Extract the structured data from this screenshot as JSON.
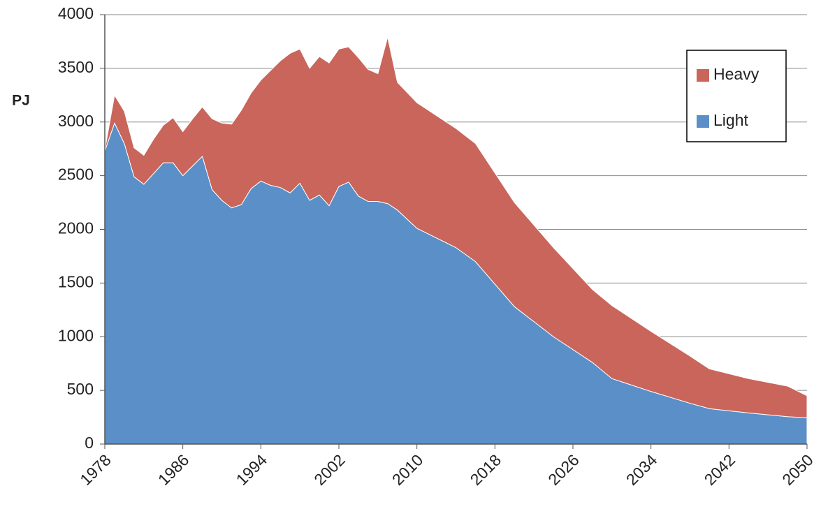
{
  "chart_data": {
    "type": "stacked-area",
    "y_label": "PJ",
    "x": [
      1978,
      1979,
      1980,
      1981,
      1982,
      1983,
      1984,
      1985,
      1986,
      1987,
      1988,
      1989,
      1990,
      1991,
      1992,
      1993,
      1994,
      1995,
      1996,
      1997,
      1998,
      1999,
      2000,
      2001,
      2002,
      2003,
      2004,
      2005,
      2006,
      2007,
      2008,
      2010,
      2014,
      2016,
      2020,
      2024,
      2028,
      2030,
      2034,
      2038,
      2040,
      2044,
      2048,
      2050
    ],
    "series": [
      {
        "name": "Light",
        "color": "#5b8fc7",
        "values": [
          2730,
          2990,
          2800,
          2490,
          2420,
          2520,
          2620,
          2620,
          2500,
          2590,
          2680,
          2370,
          2270,
          2200,
          2230,
          2380,
          2450,
          2410,
          2390,
          2340,
          2430,
          2270,
          2320,
          2220,
          2400,
          2440,
          2310,
          2260,
          2260,
          2240,
          2180,
          2010,
          1830,
          1700,
          1280,
          1000,
          760,
          610,
          490,
          380,
          330,
          290,
          255,
          245
        ]
      },
      {
        "name": "Heavy",
        "color": "#c9655b",
        "values": [
          10,
          260,
          300,
          270,
          270,
          320,
          350,
          420,
          410,
          440,
          460,
          660,
          720,
          780,
          880,
          890,
          940,
          1070,
          1180,
          1300,
          1250,
          1230,
          1290,
          1330,
          1280,
          1260,
          1290,
          1230,
          1190,
          1550,
          1190,
          1170,
          1110,
          1100,
          970,
          830,
          680,
          680,
          560,
          440,
          370,
          320,
          285,
          205
        ]
      }
    ],
    "xlim": [
      1978,
      2050
    ],
    "xticks": [
      1978,
      1986,
      1994,
      2002,
      2010,
      2018,
      2026,
      2034,
      2042,
      2050
    ],
    "ylim": [
      0,
      4000
    ],
    "yticks": [
      0,
      500,
      1000,
      1500,
      2000,
      2500,
      3000,
      3500,
      4000
    ],
    "grid": true,
    "legend": "upper right"
  }
}
